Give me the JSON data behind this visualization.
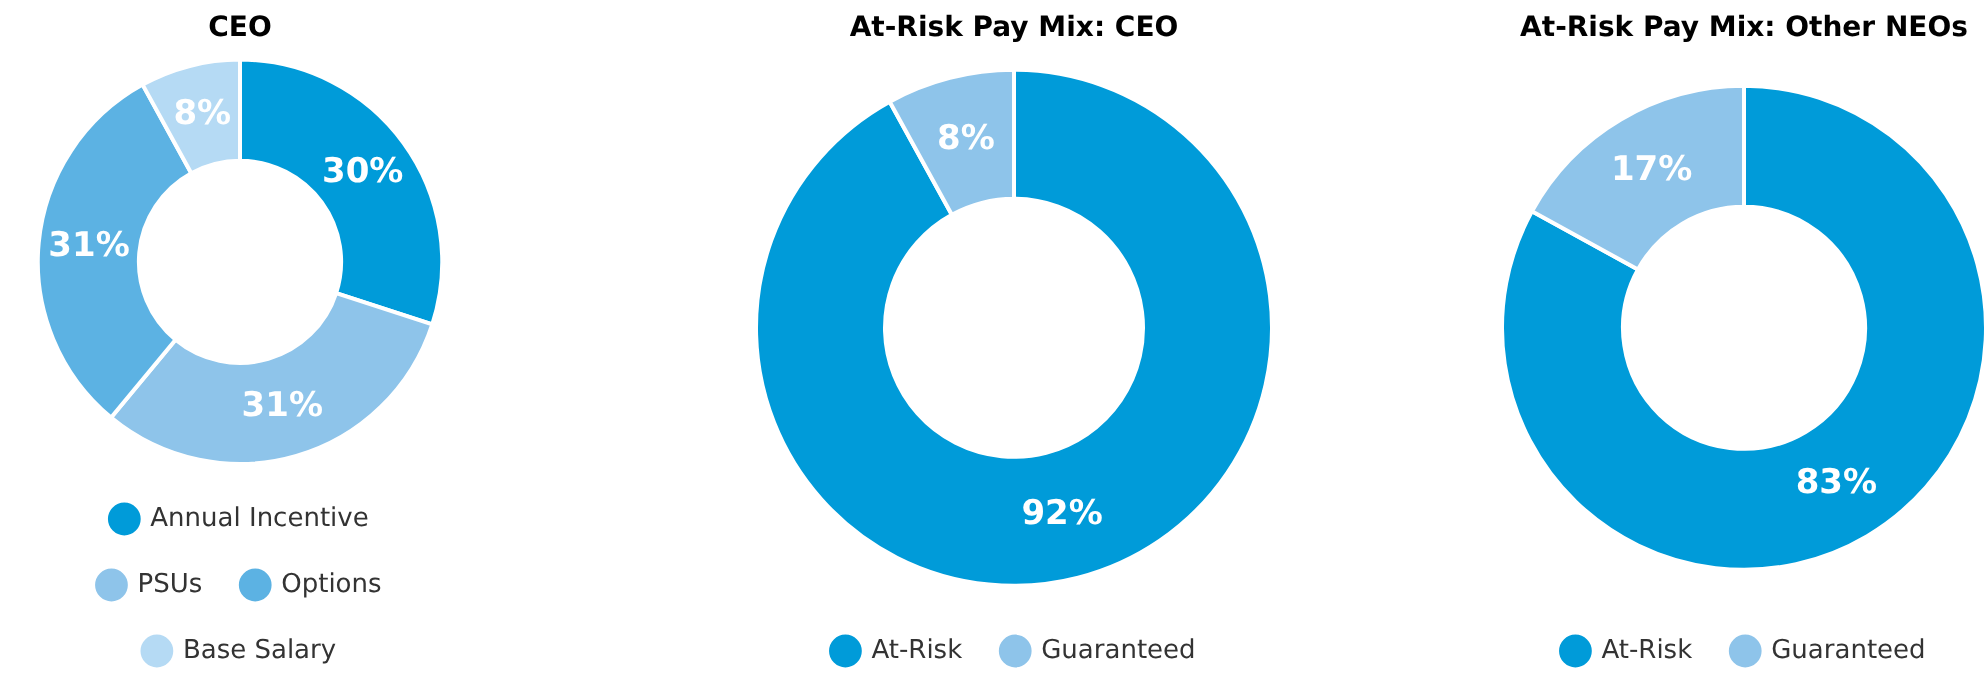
{
  "chart_data": [
    {
      "type": "donut",
      "title": "CEO",
      "categories": [
        "Annual Incentive",
        "PSUs",
        "Options",
        "Base Salary"
      ],
      "values": [
        30,
        31,
        31,
        8
      ],
      "colors": [
        "#009bd9",
        "#8ec4ea",
        "#5cb2e3",
        "#b5daf4"
      ],
      "value_labels": [
        "30%",
        "31%",
        "31%",
        "8%"
      ],
      "legend": "bottom"
    },
    {
      "type": "donut",
      "title": "At-Risk Pay Mix: CEO",
      "categories": [
        "At-Risk",
        "Guaranteed"
      ],
      "values": [
        92,
        8
      ],
      "colors": [
        "#009bd9",
        "#8ec4ea"
      ],
      "value_labels": [
        "92%",
        "8%"
      ],
      "legend": "bottom"
    },
    {
      "type": "donut",
      "title": "At-Risk Pay Mix: Other NEOs",
      "categories": [
        "At-Risk",
        "Guaranteed"
      ],
      "values": [
        83,
        17
      ],
      "colors": [
        "#009bd9",
        "#8ec4ea"
      ],
      "value_labels": [
        "83%",
        "17%"
      ],
      "legend": "bottom"
    }
  ]
}
